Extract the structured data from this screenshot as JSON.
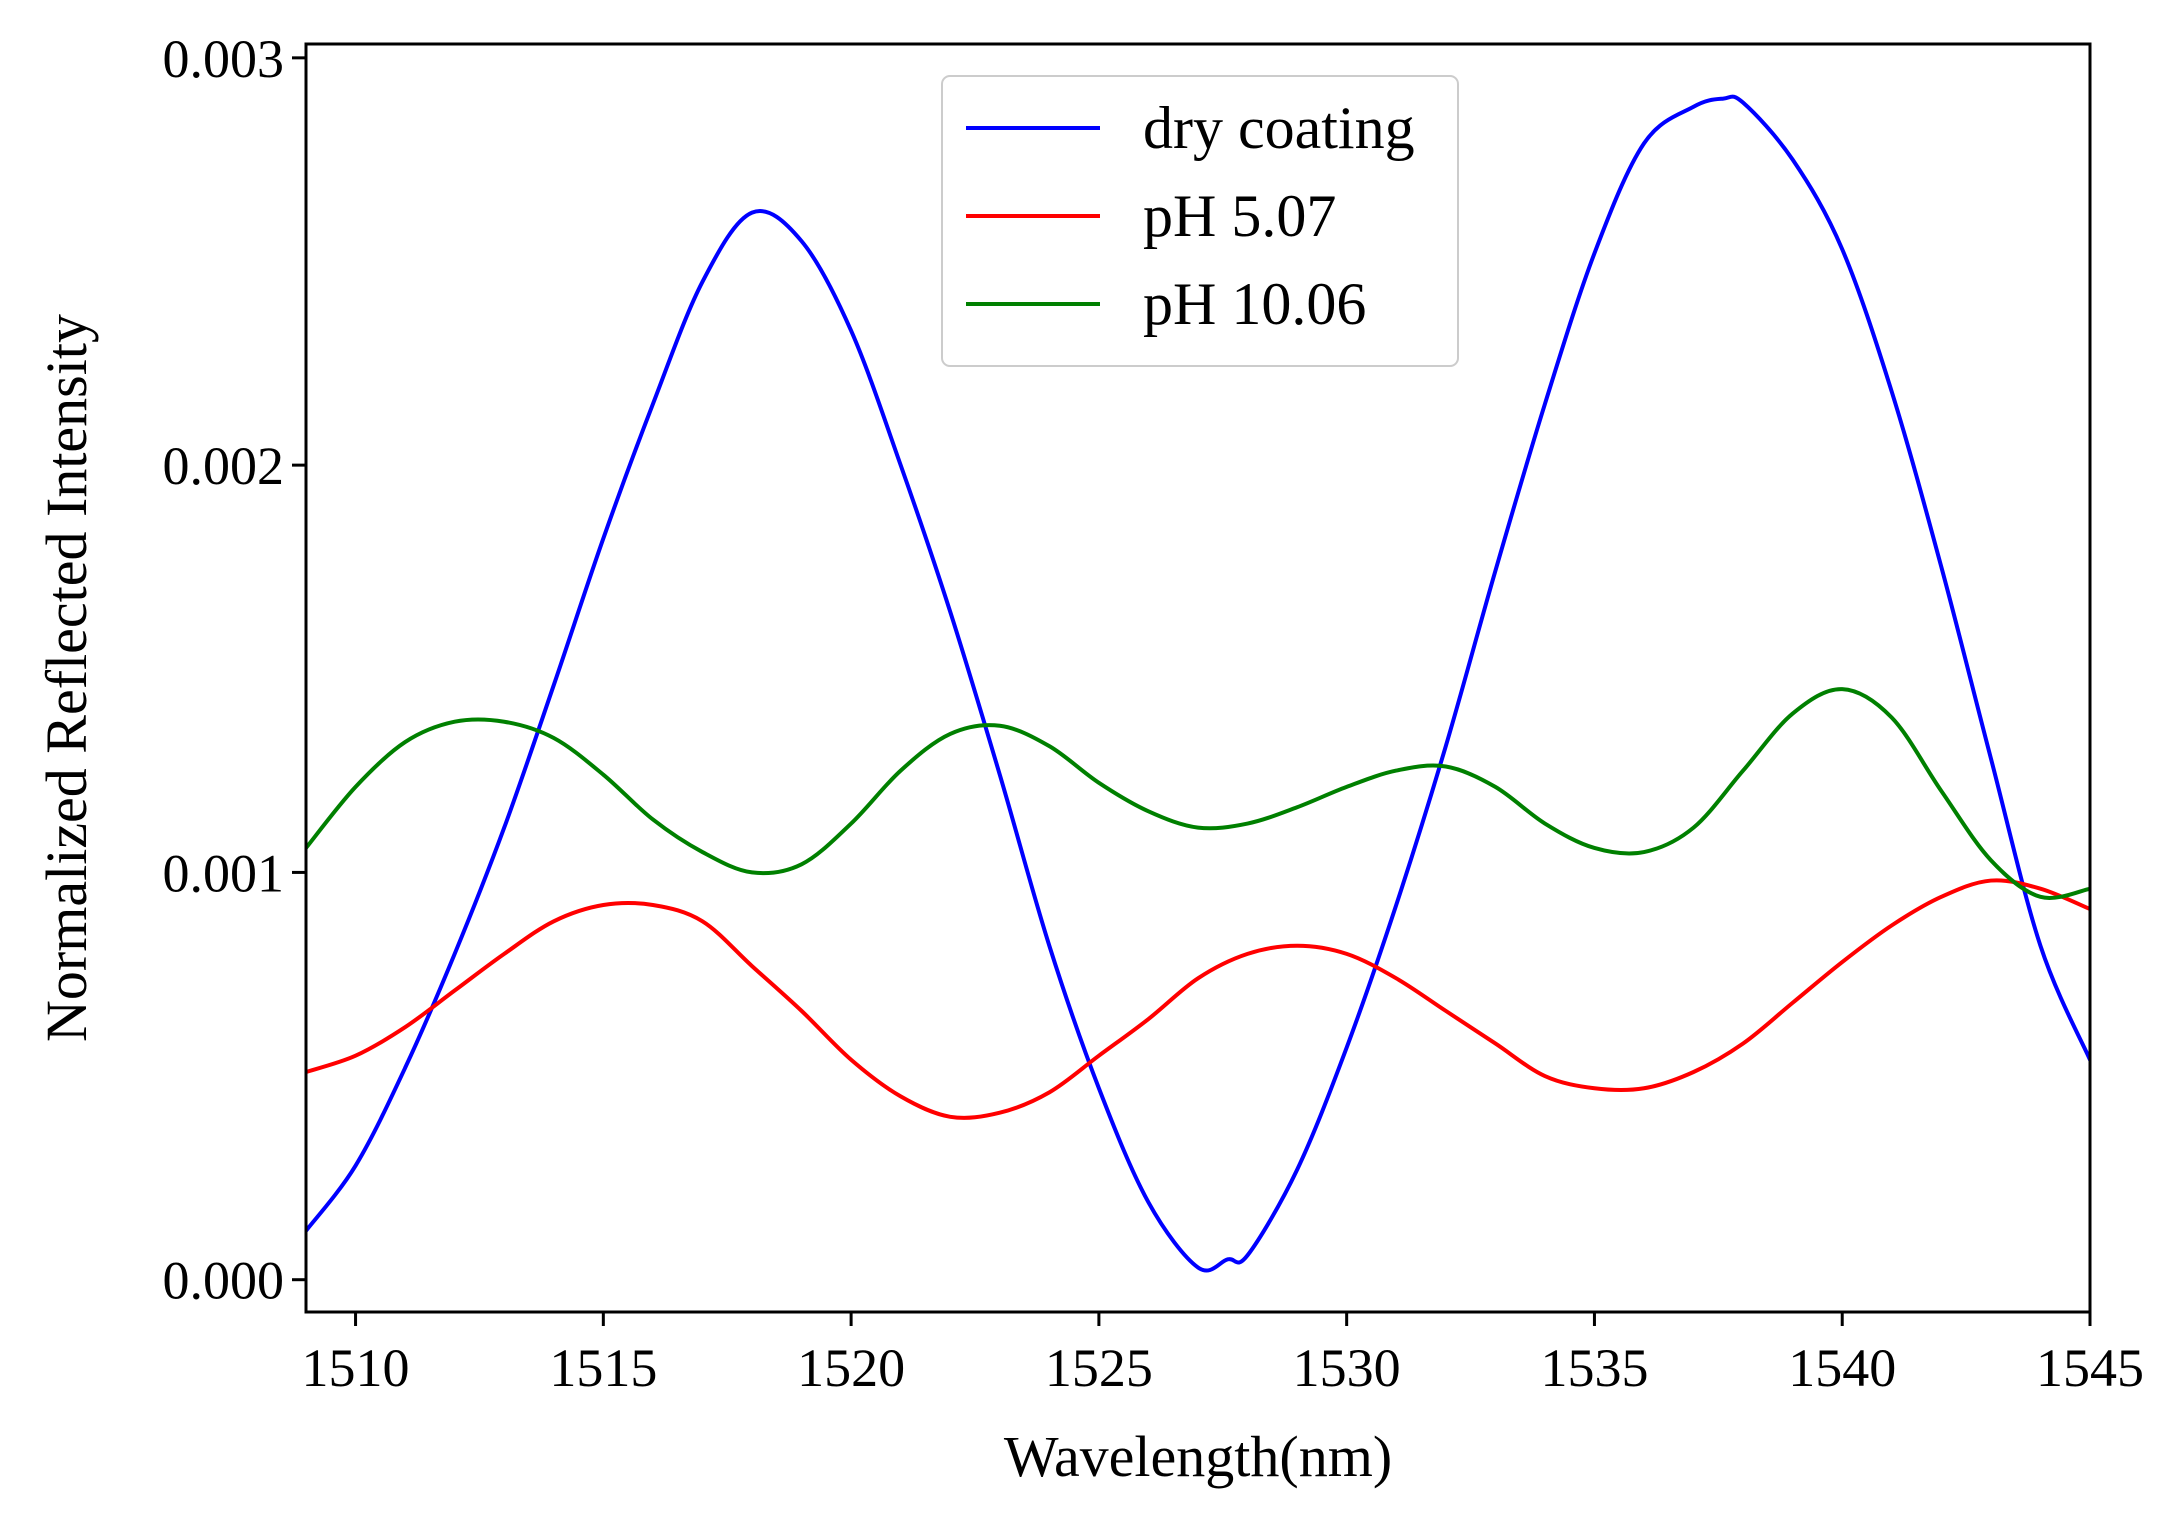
{
  "chart_data": {
    "type": "line",
    "title": "",
    "xlabel": "Wavelength(nm)",
    "ylabel": "Normalized Reflected Intensity",
    "xlim": [
      1509,
      1545
    ],
    "ylim": [
      -7.93e-05,
      0.003034
    ],
    "xticks": [
      1510,
      1515,
      1520,
      1525,
      1530,
      1535,
      1540,
      1545
    ],
    "xtick_labels": [
      "1510",
      "1515",
      "1520",
      "1525",
      "1530",
      "1535",
      "1540",
      "1545"
    ],
    "yticks": [
      0.0,
      0.001,
      0.002,
      0.003
    ],
    "ytick_labels": [
      "0.000",
      "0.001",
      "0.002",
      "0.003"
    ],
    "grid": false,
    "legend_position": "top-center",
    "series": [
      {
        "name": "dry coating",
        "color": "#0000ff",
        "points": [
          [
            1509,
            0.00012
          ],
          [
            1510,
            0.00028
          ],
          [
            1511,
            0.00052
          ],
          [
            1512,
            0.0008
          ],
          [
            1513,
            0.00111
          ],
          [
            1514,
            0.00146
          ],
          [
            1515,
            0.00182
          ],
          [
            1516,
            0.00215
          ],
          [
            1517,
            0.00245
          ],
          [
            1518,
            0.00262
          ],
          [
            1519,
            0.00255
          ],
          [
            1520,
            0.00233
          ],
          [
            1521,
            0.002
          ],
          [
            1522,
            0.00164
          ],
          [
            1523,
            0.00124
          ],
          [
            1524,
            0.00082
          ],
          [
            1525,
            0.00047
          ],
          [
            1526,
            0.00019
          ],
          [
            1527,
            3e-05
          ],
          [
            1527.6,
            5e-05
          ],
          [
            1528,
            6e-05
          ],
          [
            1529,
            0.00027
          ],
          [
            1530,
            0.00057
          ],
          [
            1531,
            0.00092
          ],
          [
            1532,
            0.00131
          ],
          [
            1533,
            0.00174
          ],
          [
            1534,
            0.00215
          ],
          [
            1535,
            0.00252
          ],
          [
            1536,
            0.00279
          ],
          [
            1537,
            0.00288
          ],
          [
            1537.6,
            0.0029
          ],
          [
            1538,
            0.00289
          ],
          [
            1539,
            0.00275
          ],
          [
            1540,
            0.00253
          ],
          [
            1541,
            0.00218
          ],
          [
            1542,
            0.00175
          ],
          [
            1543,
            0.00128
          ],
          [
            1544,
            0.00082
          ],
          [
            1545,
            0.00054
          ]
        ]
      },
      {
        "name": "pH 5.07",
        "color": "#ff0000",
        "points": [
          [
            1509,
            0.00051
          ],
          [
            1510,
            0.00055
          ],
          [
            1511,
            0.00062
          ],
          [
            1512,
            0.00071
          ],
          [
            1513,
            0.0008
          ],
          [
            1514,
            0.00088
          ],
          [
            1515,
            0.00092
          ],
          [
            1516,
            0.00092
          ],
          [
            1517,
            0.00088
          ],
          [
            1518,
            0.00077
          ],
          [
            1519,
            0.00066
          ],
          [
            1520,
            0.00054
          ],
          [
            1521,
            0.00045
          ],
          [
            1522,
            0.0004
          ],
          [
            1523,
            0.00041
          ],
          [
            1524,
            0.00046
          ],
          [
            1525,
            0.00055
          ],
          [
            1526,
            0.00064
          ],
          [
            1527,
            0.00074
          ],
          [
            1528,
            0.0008
          ],
          [
            1529,
            0.00082
          ],
          [
            1530,
            0.0008
          ],
          [
            1531,
            0.00074
          ],
          [
            1532,
            0.00066
          ],
          [
            1533,
            0.00058
          ],
          [
            1534,
            0.0005
          ],
          [
            1535,
            0.00047
          ],
          [
            1536,
            0.00047
          ],
          [
            1537,
            0.00051
          ],
          [
            1538,
            0.00058
          ],
          [
            1539,
            0.00068
          ],
          [
            1540,
            0.00078
          ],
          [
            1541,
            0.00087
          ],
          [
            1542,
            0.00094
          ],
          [
            1543,
            0.00098
          ],
          [
            1544,
            0.00096
          ],
          [
            1545,
            0.00091
          ]
        ]
      },
      {
        "name": "pH 10.06",
        "color": "#008000",
        "points": [
          [
            1509,
            0.00106
          ],
          [
            1510,
            0.00121
          ],
          [
            1511,
            0.00132
          ],
          [
            1512,
            0.00137
          ],
          [
            1513,
            0.00137
          ],
          [
            1514,
            0.00133
          ],
          [
            1515,
            0.00124
          ],
          [
            1516,
            0.00113
          ],
          [
            1517,
            0.00105
          ],
          [
            1518,
            0.001
          ],
          [
            1519,
            0.00102
          ],
          [
            1520,
            0.00112
          ],
          [
            1521,
            0.00125
          ],
          [
            1522,
            0.00134
          ],
          [
            1523,
            0.00136
          ],
          [
            1524,
            0.00131
          ],
          [
            1525,
            0.00122
          ],
          [
            1526,
            0.00115
          ],
          [
            1527,
            0.00111
          ],
          [
            1528,
            0.00112
          ],
          [
            1529,
            0.00116
          ],
          [
            1530,
            0.00121
          ],
          [
            1531,
            0.00125
          ],
          [
            1532,
            0.00126
          ],
          [
            1533,
            0.00121
          ],
          [
            1534,
            0.00112
          ],
          [
            1535,
            0.00106
          ],
          [
            1536,
            0.00105
          ],
          [
            1537,
            0.00111
          ],
          [
            1538,
            0.00125
          ],
          [
            1539,
            0.00139
          ],
          [
            1540,
            0.00145
          ],
          [
            1541,
            0.00138
          ],
          [
            1542,
            0.0012
          ],
          [
            1543,
            0.00103
          ],
          [
            1544,
            0.00094
          ],
          [
            1545,
            0.00096
          ]
        ]
      }
    ]
  }
}
